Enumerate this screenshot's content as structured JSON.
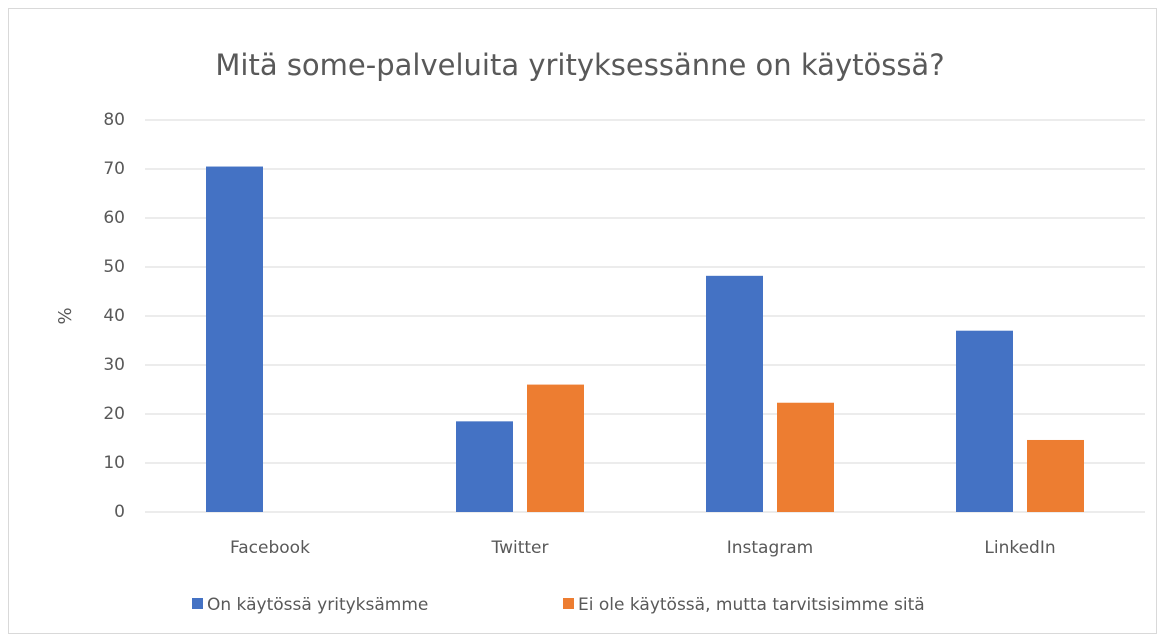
{
  "chart_data": {
    "type": "bar",
    "title": "Mitä some-palveluita yrityksessänne on käytössä?",
    "y_label": "%",
    "categories": [
      "Facebook",
      "Twitter",
      "Instagram",
      "LinkedIn"
    ],
    "series": [
      {
        "name": "On käytössä yrityksämme",
        "color": "#4472c4",
        "values": [
          70.5,
          18.5,
          48.2,
          37
        ]
      },
      {
        "name": "Ei ole käytössä, mutta tarvitsisimme sitä",
        "color": "#ed7d31",
        "values": [
          null,
          26,
          22.3,
          14.7
        ]
      }
    ],
    "ylim": [
      0,
      80
    ],
    "yticks": [
      0,
      10,
      20,
      30,
      40,
      50,
      60,
      70,
      80
    ],
    "grid": true,
    "legend": "bottom"
  }
}
